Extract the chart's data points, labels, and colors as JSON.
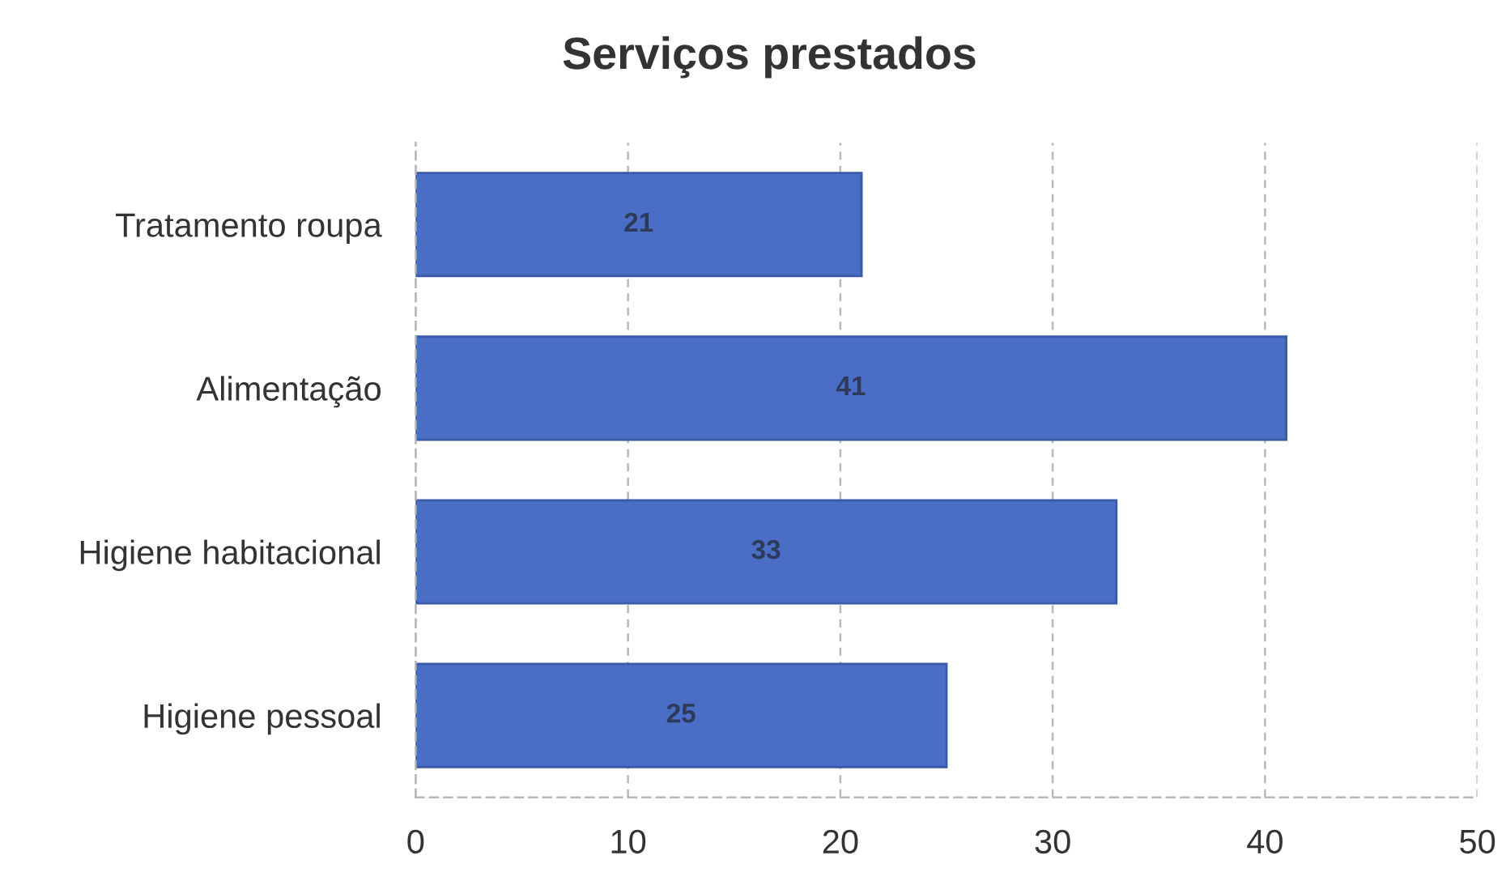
{
  "chart_data": {
    "type": "bar",
    "orientation": "horizontal",
    "title": "Serviços prestados",
    "categories": [
      "Tratamento roupa",
      "Alimentação",
      "Higiene habitacional",
      "Higiene pessoal"
    ],
    "values": [
      21,
      41,
      33,
      25
    ],
    "color": "#4a6ec6",
    "xlim": [
      0,
      50
    ],
    "xticks": [
      0,
      10,
      20,
      30,
      40,
      50
    ],
    "grid": "x",
    "data_labels": true
  }
}
